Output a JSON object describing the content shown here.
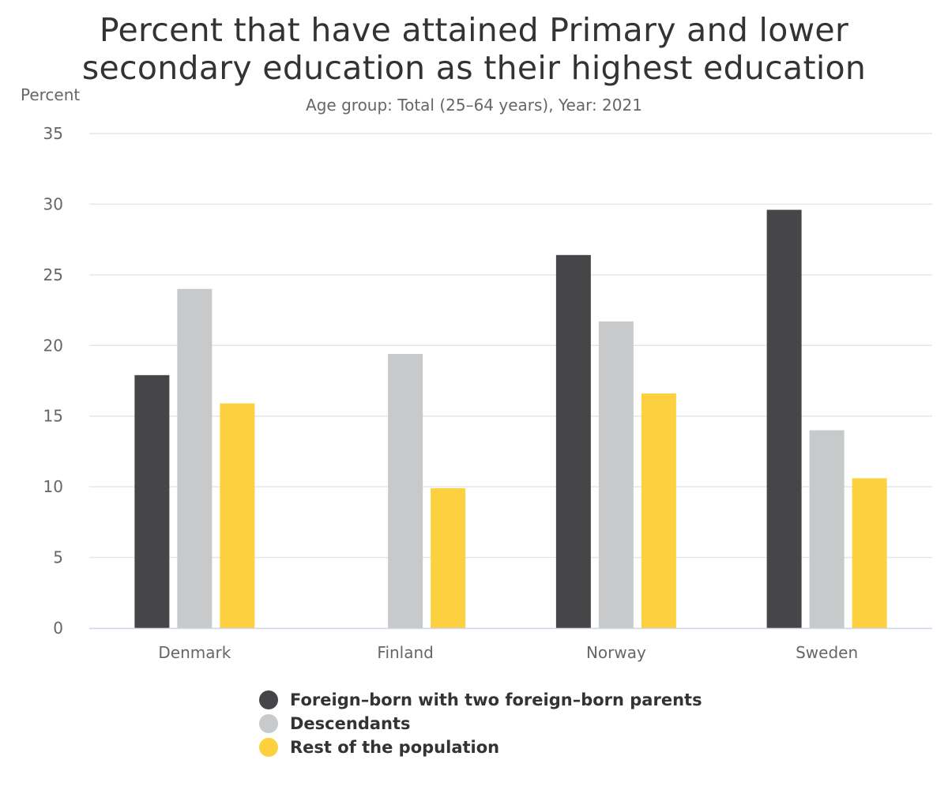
{
  "chart_data": {
    "type": "bar",
    "title": "Percent that have attained Primary and lower secondary education as their highest education",
    "title_lines": [
      "Percent that have attained Primary and lower",
      "secondary education as their highest education"
    ],
    "subtitle": "Age group: Total (25–64 years), Year: 2021",
    "xlabel": "",
    "ylabel": "Percent",
    "ylim": [
      0,
      35
    ],
    "yticks": [
      0,
      5,
      10,
      15,
      20,
      25,
      30,
      35
    ],
    "grid": true,
    "legend_position": "bottom",
    "categories": [
      "Denmark",
      "Finland",
      "Norway",
      "Sweden"
    ],
    "series": [
      {
        "name": "Foreign–born with two foreign–born parents",
        "color": "#464648",
        "values": [
          17.9,
          null,
          26.4,
          29.6
        ]
      },
      {
        "name": "Descendants",
        "color": "#c8c9cb",
        "values": [
          24.0,
          19.4,
          21.7,
          14.0
        ]
      },
      {
        "name": "Rest of the population",
        "color": "#fdd03f",
        "values": [
          15.9,
          9.9,
          16.6,
          10.6
        ]
      }
    ]
  }
}
